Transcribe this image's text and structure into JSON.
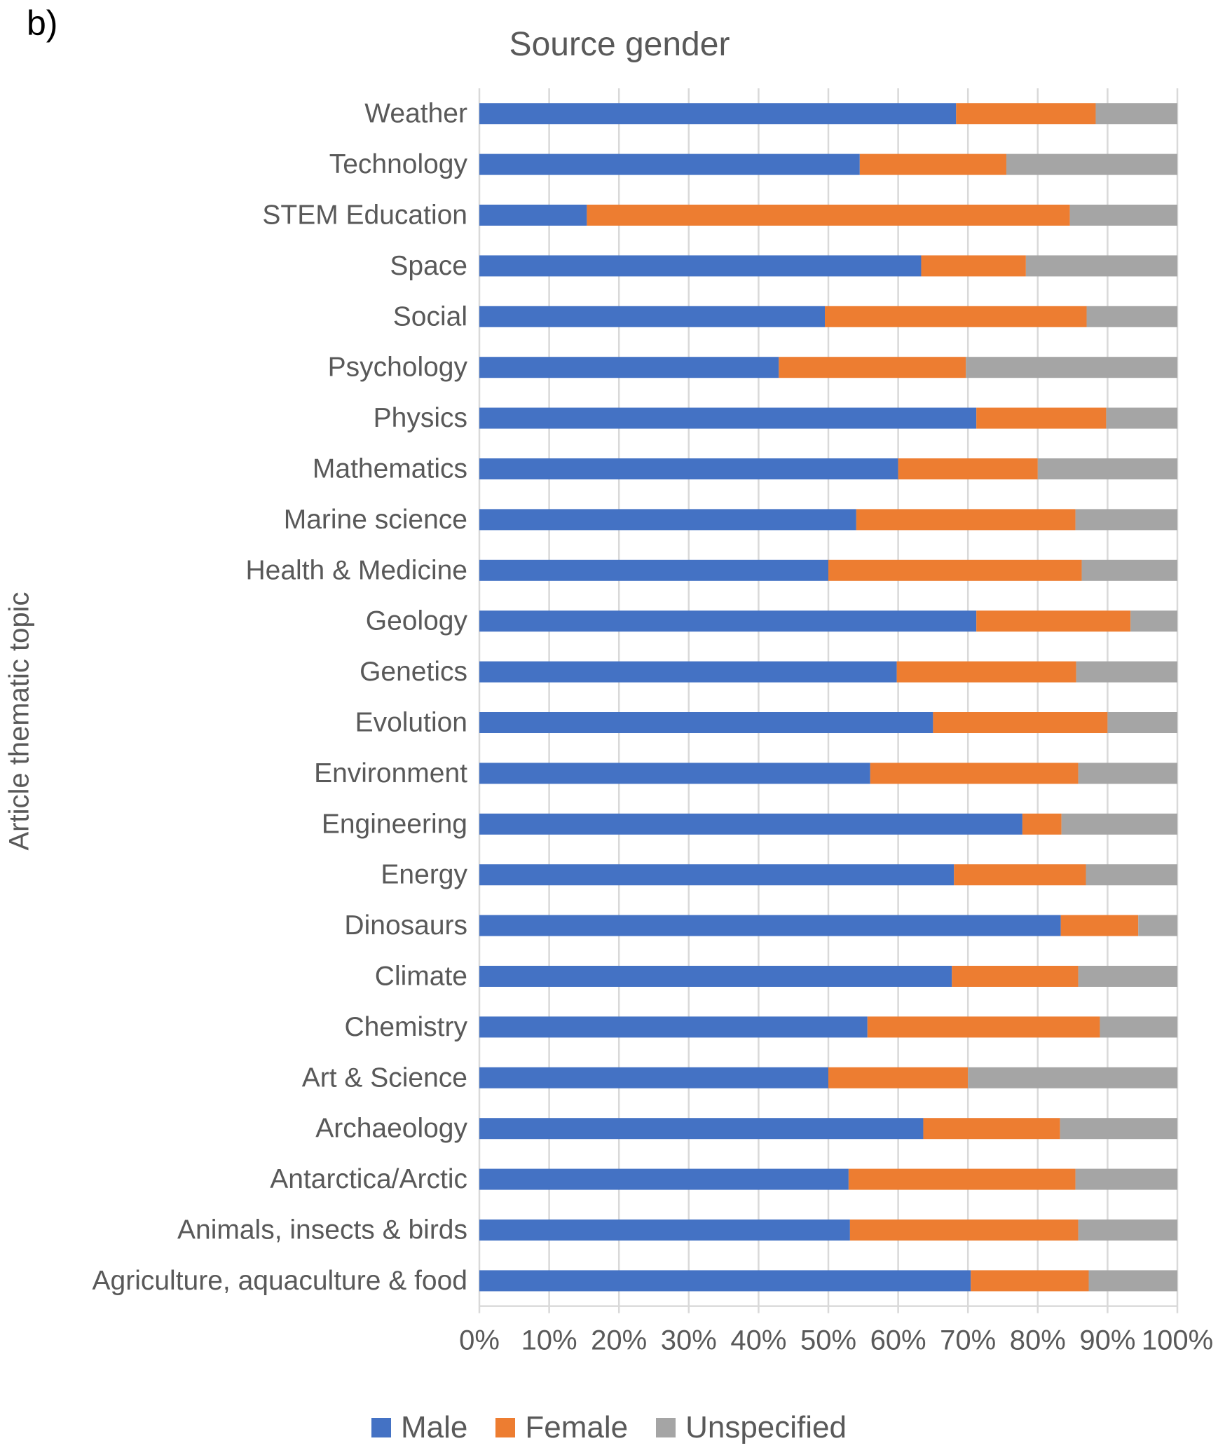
{
  "panel_label": "b)",
  "chart_data": {
    "type": "bar",
    "orientation": "horizontal",
    "stacked": "percent",
    "title": "Source gender",
    "xlabel": "",
    "ylabel": "Article thematic topic",
    "xlim": [
      0,
      100
    ],
    "x_ticks": [
      "0%",
      "10%",
      "20%",
      "30%",
      "40%",
      "50%",
      "60%",
      "70%",
      "80%",
      "90%",
      "100%"
    ],
    "grid": "vertical",
    "legend_position": "bottom",
    "categories": [
      "Weather",
      "Technology",
      "STEM Education",
      "Space",
      "Social",
      "Psychology",
      "Physics",
      "Mathematics",
      "Marine science",
      "Health & Medicine",
      "Geology",
      "Genetics",
      "Evolution",
      "Environment",
      "Engineering",
      "Energy",
      "Dinosaurs",
      "Climate",
      "Chemistry",
      "Art & Science",
      "Archaeology",
      "Antarctica/Arctic",
      "Animals, insects & birds",
      "Agriculture, aquaculture & food"
    ],
    "series": [
      {
        "name": "Male",
        "color": "#4472C4",
        "values": [
          68.3,
          54.5,
          15.4,
          63.3,
          49.5,
          42.9,
          71.2,
          60.0,
          54.0,
          50.0,
          71.2,
          59.8,
          65.0,
          56.0,
          77.8,
          68.0,
          83.3,
          67.7,
          55.6,
          50.0,
          63.6,
          52.9,
          53.1,
          70.4
        ]
      },
      {
        "name": "Female",
        "color": "#ED7D31",
        "values": [
          20.0,
          21.0,
          69.2,
          15.0,
          37.5,
          26.8,
          18.6,
          20.0,
          31.4,
          36.3,
          22.1,
          25.7,
          25.0,
          29.8,
          5.6,
          18.9,
          11.1,
          18.1,
          33.3,
          20.0,
          19.6,
          32.5,
          32.7,
          16.9
        ]
      },
      {
        "name": "Unspecified",
        "color": "#A5A5A5",
        "values": [
          11.7,
          24.5,
          15.4,
          21.7,
          13.0,
          30.3,
          10.2,
          20.0,
          14.6,
          13.7,
          6.7,
          14.5,
          10.0,
          14.2,
          16.6,
          13.1,
          5.6,
          14.2,
          11.1,
          30.0,
          16.8,
          14.6,
          14.2,
          12.7
        ]
      }
    ]
  }
}
